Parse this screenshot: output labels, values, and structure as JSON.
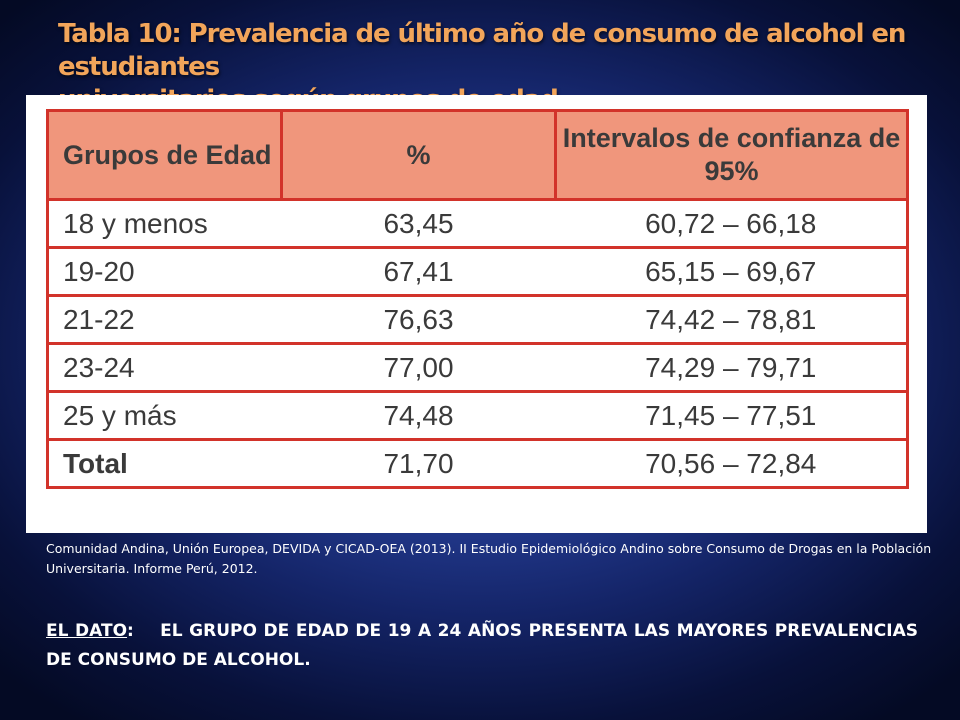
{
  "slide": {
    "title_line1": "Tabla 10: Prevalencia de último año de consumo de alcohol en estudiantes",
    "title_line2": "universitarios según grupos de edad."
  },
  "table": {
    "headers": {
      "col1": "Grupos de Edad",
      "col2": "%",
      "col3": "Intervalos de confianza de 95%"
    },
    "rows": [
      {
        "group": "18 y menos",
        "pct": "63,45",
        "ci": "60,72 – 66,18"
      },
      {
        "group": "19-20",
        "pct": "67,41",
        "ci": "65,15 – 69,67"
      },
      {
        "group": "21-22",
        "pct": "76,63",
        "ci": "74,42 – 78,81"
      },
      {
        "group": "23-24",
        "pct": "77,00",
        "ci": "74,29 – 79,71"
      },
      {
        "group": "25 y más",
        "pct": "74,48",
        "ci": "71,45 – 77,51"
      },
      {
        "group": "Total",
        "pct": "71,70",
        "ci": "70,56 – 72,84"
      }
    ],
    "colors": {
      "border": "#d2332a",
      "header_bg": "#f0967c",
      "text": "#3a3a3a"
    }
  },
  "source": "Comunidad Andina, Unión Europea, DEVIDA y CICAD-OEA (2013). II Estudio Epidemiológico Andino sobre Consumo de Drogas en la Población Universitaria. Informe Perú, 2012.",
  "dato": {
    "lead": "EL DATO",
    "text": "EL GRUPO DE EDAD DE 19 A 24 AÑOS PRESENTA LAS MAYORES PREVALENCIAS DE CONSUMO DE ALCOHOL."
  }
}
